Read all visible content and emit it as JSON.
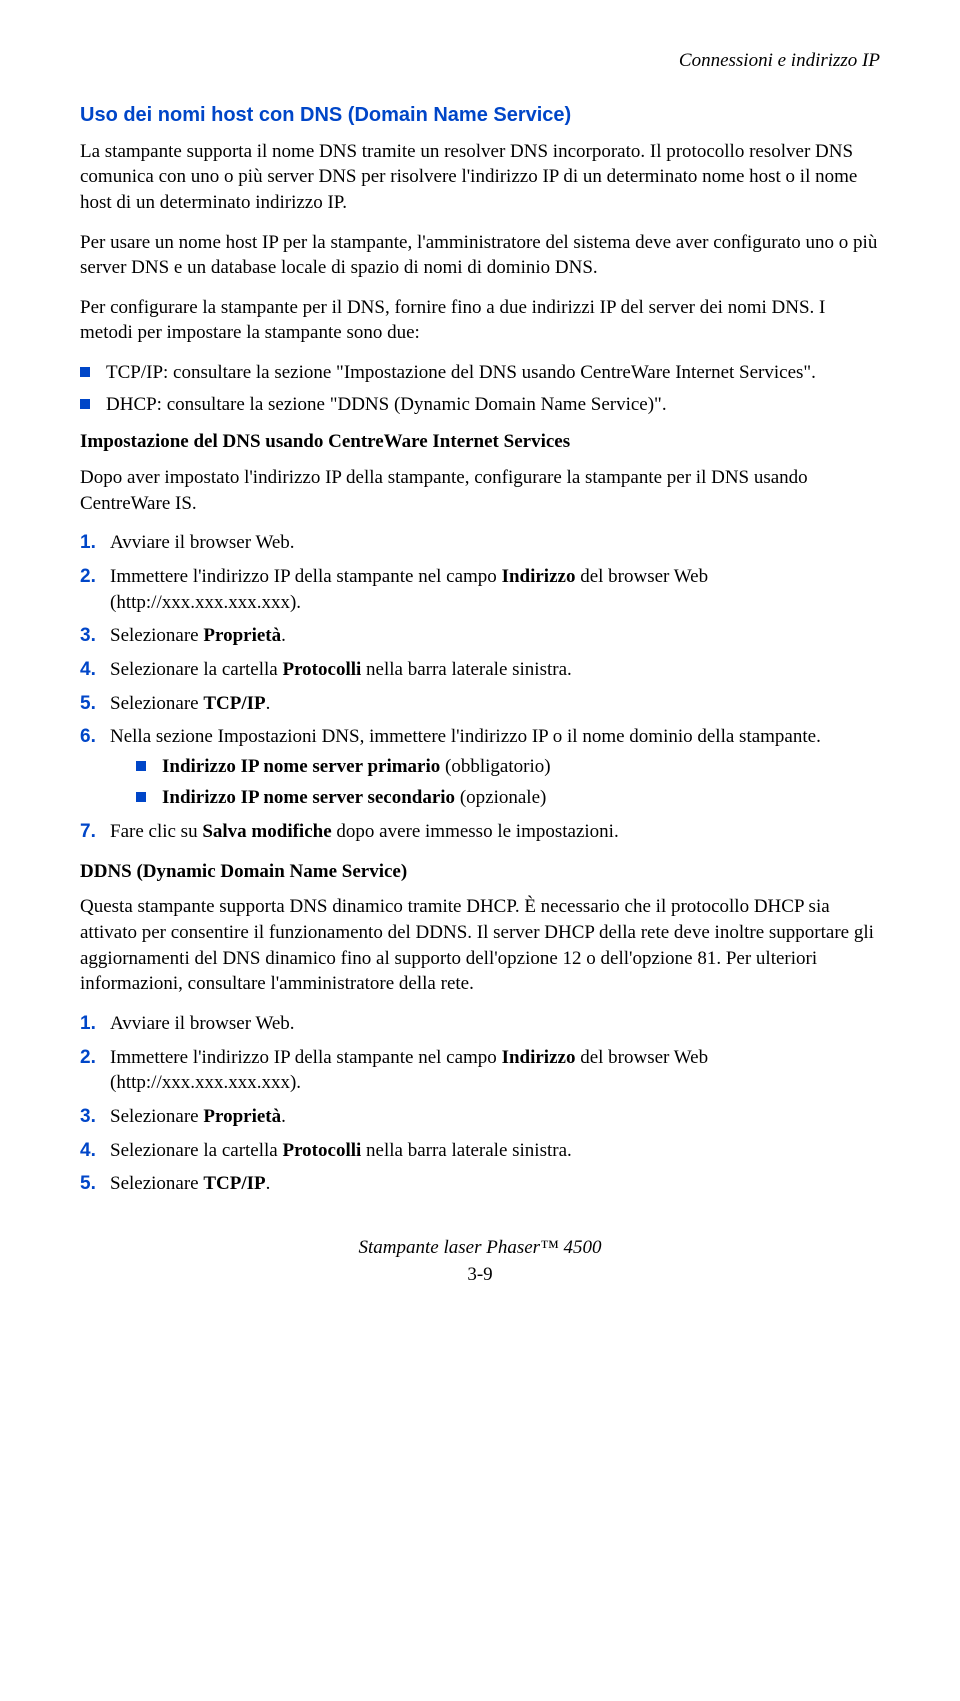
{
  "header": {
    "right": "Connessioni e indirizzo IP"
  },
  "title": "Uso dei nomi host con DNS (Domain Name Service)",
  "p1": "La stampante supporta il nome DNS tramite un resolver DNS incorporato. Il protocollo resolver DNS comunica con uno o più server DNS per risolvere l'indirizzo IP di un determinato nome host o il nome host di un determinato indirizzo IP.",
  "p2": "Per usare un nome host IP per la stampante, l'amministratore del sistema deve aver configurato uno o più server DNS e un database locale di spazio di nomi di dominio DNS.",
  "p3": "Per configurare la stampante per il DNS, fornire fino a due indirizzi IP del server dei nomi DNS. I metodi per impostare la stampante sono due:",
  "bullets1": [
    "TCP/IP: consultare la sezione \"Impostazione del DNS usando CentreWare Internet Services\".",
    "DHCP: consultare la sezione \"DDNS (Dynamic Domain Name Service)\"."
  ],
  "sub1_title": "Impostazione del DNS usando CentreWare Internet Services",
  "sub1_intro": "Dopo aver impostato l'indirizzo IP della stampante, configurare la stampante per il DNS usando CentreWare IS.",
  "steps1": {
    "s1": "Avviare il browser Web.",
    "s2a": "Immettere l'indirizzo IP della stampante nel campo ",
    "s2b": "Indirizzo",
    "s2c": " del browser Web (http://xxx.xxx.xxx.xxx).",
    "s3a": "Selezionare ",
    "s3b": "Proprietà",
    "s3c": ".",
    "s4a": "Selezionare la cartella ",
    "s4b": "Protocolli",
    "s4c": " nella barra laterale sinistra.",
    "s5a": "Selezionare ",
    "s5b": "TCP/IP",
    "s5c": ".",
    "s6": "Nella sezione Impostazioni DNS, immettere l'indirizzo IP o il nome dominio della stampante.",
    "s6_sub": [
      {
        "a": "Indirizzo IP nome server primario",
        "b": " (obbligatorio)"
      },
      {
        "a": "Indirizzo IP nome server secondario",
        "b": " (opzionale)"
      }
    ],
    "s7a": "Fare clic su ",
    "s7b": "Salva modifiche",
    "s7c": " dopo avere immesso le impostazioni."
  },
  "sub2_title": "DDNS (Dynamic Domain Name Service)",
  "sub2_intro": "Questa stampante supporta DNS dinamico tramite DHCP. È necessario che il protocollo DHCP sia attivato per consentire il funzionamento del DDNS. Il server DHCP della rete deve inoltre supportare gli aggiornamenti del DNS dinamico fino al supporto dell'opzione 12 o dell'opzione 81. Per ulteriori informazioni, consultare l'amministratore della rete.",
  "steps2": {
    "s1": "Avviare il browser Web.",
    "s2a": "Immettere l'indirizzo IP della stampante nel campo ",
    "s2b": "Indirizzo",
    "s2c": " del browser Web (http://xxx.xxx.xxx.xxx).",
    "s3a": "Selezionare ",
    "s3b": "Proprietà",
    "s3c": ".",
    "s4a": "Selezionare la cartella ",
    "s4b": "Protocolli",
    "s4c": " nella barra laterale sinistra.",
    "s5a": "Selezionare ",
    "s5b": "TCP/IP",
    "s5c": "."
  },
  "footer": {
    "line1": "Stampante laser Phaser™ 4500",
    "line2": "3-9"
  }
}
